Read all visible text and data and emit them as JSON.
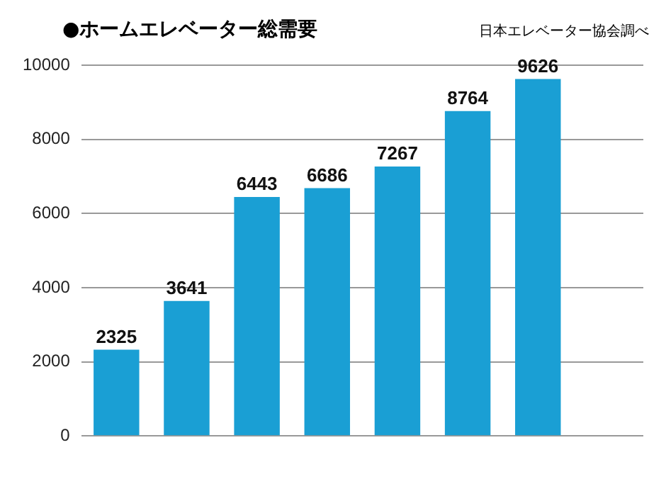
{
  "chart_data": {
    "type": "bar",
    "title": "●ホームエレベーター総需要",
    "annotations": [
      "日本エレベーター協会調べ"
    ],
    "categories": [
      null,
      null,
      null,
      null,
      null,
      null,
      null,
      null
    ],
    "values": [
      2325,
      3641,
      6443,
      6686,
      7267,
      8764,
      9626,
      null
    ],
    "color": "#1a9fd4",
    "ylim": [
      0,
      10000
    ],
    "yticks": [
      0,
      2000,
      4000,
      6000,
      8000,
      10000
    ],
    "grid": "y",
    "data_labels": true
  }
}
